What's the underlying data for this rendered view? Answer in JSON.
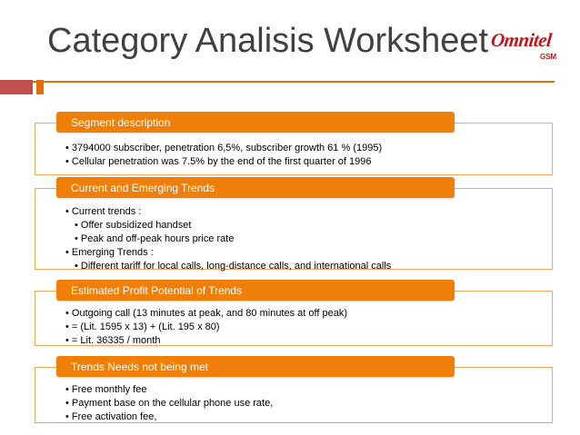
{
  "slide": {
    "title": "Category Analisis Worksheet",
    "logo_text": "Omnitel",
    "logo_sub": "GSM",
    "accent": "#f07f09",
    "border": "#f2a65e"
  },
  "sections": [
    {
      "header": "Segment description",
      "bullets": [
        "• 3794000 subscriber, penetration 6,5%, subscriber growth 61 % (1995)",
        "• Cellular penetration was 7.5% by the end of the first quarter of 1996"
      ]
    },
    {
      "header": "Current and Emerging Trends",
      "bullets": [
        "• Current trends      :",
        "• Offer subsidized handset",
        "• Peak and off-peak hours price rate",
        "• Emerging Trends :",
        "• Different tariff for local calls, long-distance calls, and international calls"
      ]
    },
    {
      "header": "Estimated Profit Potential of Trends",
      "bullets": [
        "• Outgoing call (13 minutes at peak, and 80 minutes at off peak)",
        "• = (Lit. 1595 x 13) + (Lit. 195 x 80)",
        "• = Lit. 36335 / month"
      ]
    },
    {
      "header": "Trends Needs not being met",
      "bullets": [
        "• Free monthly fee",
        "• Payment base on the cellular phone use rate,",
        "• Free activation fee,"
      ]
    }
  ]
}
